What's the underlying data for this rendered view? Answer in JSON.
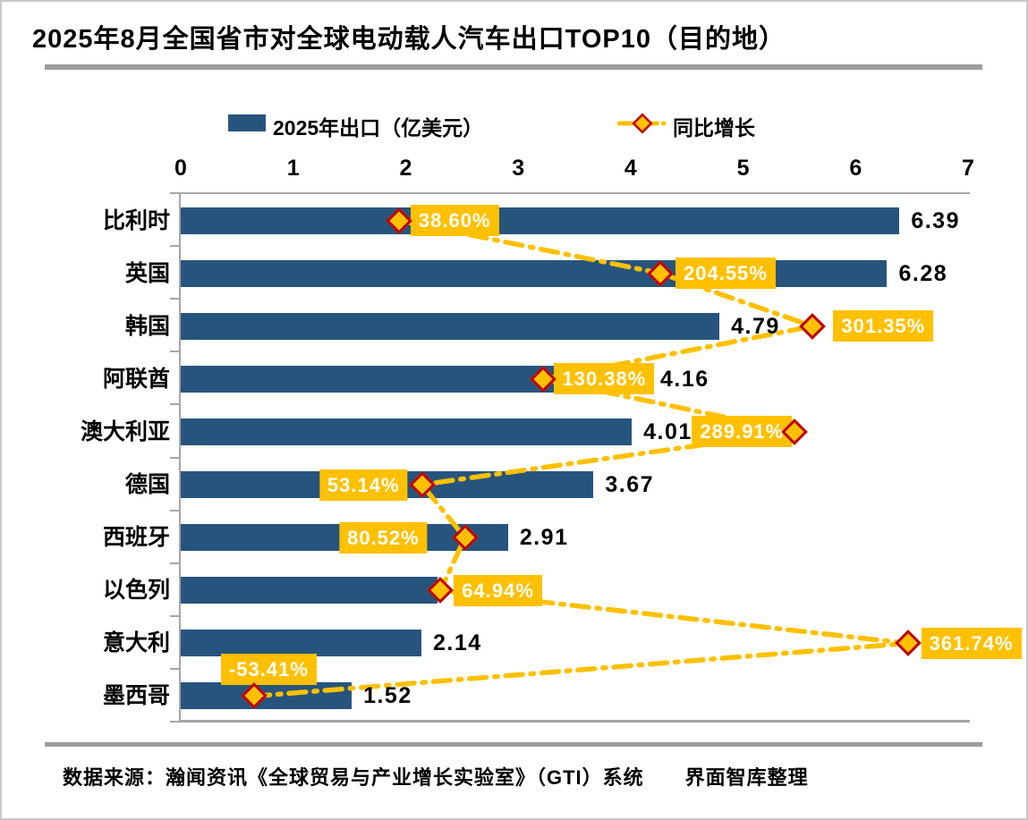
{
  "title": "2025年8月全国省市对全球电动载人汽车出口TOP10（目的地）",
  "legend": {
    "bar_label": "2025年出口（亿美元）",
    "line_label": "同比增长"
  },
  "x_axis": {
    "ticks": [
      "0",
      "1",
      "2",
      "3",
      "4",
      "5",
      "6",
      "7"
    ]
  },
  "chart_data": {
    "type": "bar",
    "orientation": "horizontal",
    "title": "2025年8月全国省市对全球电动载人汽车出口TOP10（目的地）",
    "categories": [
      "比利时",
      "英国",
      "韩国",
      "阿联酋",
      "澳大利亚",
      "德国",
      "西班牙",
      "以色列",
      "意大利",
      "墨西哥"
    ],
    "series": [
      {
        "name": "2025年出口（亿美元）",
        "type": "bar",
        "axis": "primary",
        "values": [
          6.39,
          6.28,
          4.79,
          4.16,
          4.01,
          3.67,
          2.91,
          2.28,
          2.14,
          1.52
        ],
        "value_labels": [
          "6.39",
          "6.28",
          "4.79",
          "4.16",
          "4.01",
          "3.67",
          "2.91",
          null,
          "2.14",
          "1.52"
        ],
        "hidden_label_note": "以色列 bar value label is covered by the 64.94% growth label; bar length ≈2.28 estimated from axis"
      },
      {
        "name": "同比增长",
        "type": "line",
        "axis": "secondary",
        "values": [
          38.6,
          204.55,
          301.35,
          130.38,
          289.91,
          53.14,
          80.52,
          64.94,
          361.74,
          -53.41
        ],
        "value_labels": [
          "38.60%",
          "204.55%",
          "301.35%",
          "130.38%",
          "289.91%",
          "53.14%",
          "80.52%",
          "64.94%",
          "361.74%",
          "-53.41%"
        ],
        "label_side": [
          "right",
          "right",
          "right",
          "right",
          "left",
          "left",
          "left",
          "right",
          "right",
          "above"
        ],
        "label_gap": [
          13,
          17,
          23,
          12,
          3,
          16,
          42,
          15,
          15,
          0
        ]
      }
    ],
    "xlim": [
      0,
      7
    ],
    "secondary_xlim_pct": [
      -100,
      400
    ],
    "grid": false,
    "legend_position": "top"
  },
  "footer": "数据来源：瀚闻资讯《全球贸易与产业增长实验室》（GTI）系统　　界面智库整理",
  "colors": {
    "bar": "#27547D",
    "accent_yellow": "#FFC000",
    "marker_border": "#C00000",
    "axis_gray": "#A6A6A6",
    "rule_gray": "#9D9D9D",
    "pct_label_text": "#FFFFFF",
    "text": "#000000"
  }
}
